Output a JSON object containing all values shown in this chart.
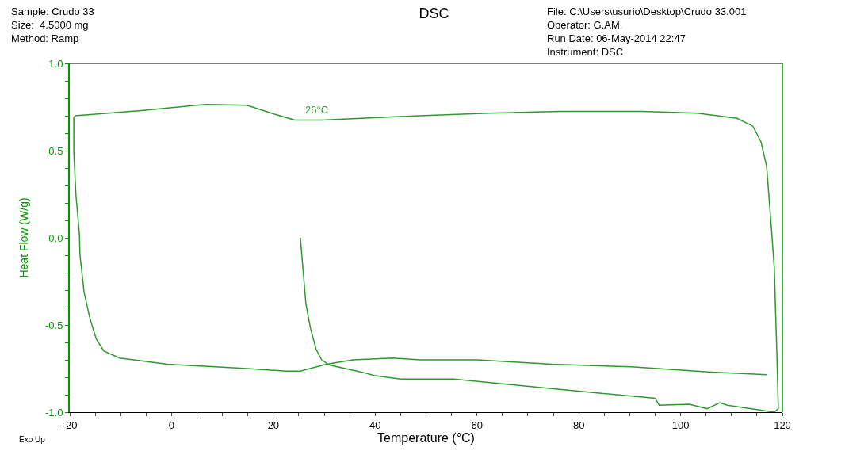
{
  "chart_data": {
    "type": "line",
    "title": "DSC",
    "xlabel": "Temperature (°C)",
    "ylabel": "Heat Flow (W/g)",
    "annotations": [
      {
        "text": "26°C",
        "x": 26,
        "y": 0.675
      },
      "Sample: Crudo 33\nSize:  4.5000 mg\nMethod: Ramp",
      "File: C:\\Users\\usurio\\Desktop\\Crudo 33.001\nOperator: G.AM.\nRun Date: 06-May-2014 22:47\nInstrument: DSC",
      "Exo Up"
    ],
    "series": [
      {
        "color": "#2e9a2e",
        "x": [
          25.3,
          26.4,
          27.3,
          28.4,
          29.5,
          31,
          37.3,
          39.8,
          45,
          48.7,
          55.4,
          69.4,
          79.9,
          95,
          95.8,
          101.7,
          105.2,
          107.7,
          109.2,
          118.4,
          119.2,
          118.9,
          118.4,
          117.8,
          116.9,
          115.8,
          114.2,
          111.1,
          103.3,
          92.4,
          76.3,
          62.3,
          48.7,
          29.6,
          24.2,
          20.1,
          14.8,
          6.8,
          -6,
          -18.9,
          -19.2,
          -19.2,
          -18.8,
          -18.1,
          -18,
          -17.2,
          -16.1,
          -14.8,
          -13.3,
          -10.2,
          -0.8,
          14.8,
          22.6,
          25.3,
          30.4,
          35.7,
          43.5,
          48.7,
          60,
          74.7,
          90.3,
          106,
          117
        ],
        "values": [
          0.0,
          -0.38,
          -0.52,
          -0.64,
          -0.7,
          -0.73,
          -0.77,
          -0.79,
          -0.81,
          -0.81,
          -0.81,
          -0.85,
          -0.88,
          -0.92,
          -0.96,
          -0.955,
          -0.98,
          -0.946,
          -0.96,
          -1.0,
          -0.98,
          -0.65,
          -0.17,
          0.07,
          0.41,
          0.55,
          0.64,
          0.685,
          0.715,
          0.725,
          0.725,
          0.715,
          0.7,
          0.675,
          0.675,
          0.71,
          0.76,
          0.765,
          0.73,
          0.7,
          0.69,
          0.49,
          0.25,
          0.02,
          -0.095,
          -0.31,
          -0.455,
          -0.58,
          -0.65,
          -0.69,
          -0.725,
          -0.75,
          -0.765,
          -0.765,
          -0.725,
          -0.7,
          -0.69,
          -0.7,
          -0.7,
          -0.725,
          -0.74,
          -0.77,
          -0.785
        ]
      }
    ],
    "xlim": [
      -20,
      120
    ],
    "xticks": [
      -20,
      {
        "value": -15,
        "label": null
      },
      {
        "value": -10,
        "label": null
      },
      {
        "value": -5,
        "label": null
      },
      0,
      {
        "value": 5,
        "label": null
      },
      {
        "value": 10,
        "label": null
      },
      {
        "value": 15,
        "label": null
      },
      20,
      {
        "value": 25,
        "label": null
      },
      {
        "value": 30,
        "label": null
      },
      {
        "value": 35,
        "label": null
      },
      40,
      {
        "value": 45,
        "label": null
      },
      {
        "value": 50,
        "label": null
      },
      {
        "value": 55,
        "label": null
      },
      60,
      {
        "value": 65,
        "label": null
      },
      {
        "value": 70,
        "label": null
      },
      {
        "value": 75,
        "label": null
      },
      80,
      {
        "value": 85,
        "label": null
      },
      {
        "value": 90,
        "label": null
      },
      {
        "value": 95,
        "label": null
      },
      100,
      {
        "value": 105,
        "label": null
      },
      {
        "value": 110,
        "label": null
      },
      {
        "value": 115,
        "label": null
      },
      120
    ],
    "ylim": [
      -1.0,
      1.0
    ],
    "yticks": [
      {
        "value": -1.0,
        "label": "-1.0"
      },
      {
        "value": -0.9,
        "label": null
      },
      {
        "value": -0.8,
        "label": null
      },
      {
        "value": -0.7,
        "label": null
      },
      {
        "value": -0.6,
        "label": null
      },
      -0.5,
      {
        "value": -0.4,
        "label": null
      },
      {
        "value": -0.3,
        "label": null
      },
      {
        "value": -0.2,
        "label": null
      },
      {
        "value": -0.1,
        "label": null
      },
      {
        "value": 0.0,
        "label": "0.0"
      },
      {
        "value": 0.1,
        "label": null
      },
      {
        "value": 0.2,
        "label": null
      },
      {
        "value": 0.3,
        "label": null
      },
      {
        "value": 0.4,
        "label": null
      },
      0.5,
      {
        "value": 0.6,
        "label": null
      },
      {
        "value": 0.7,
        "label": null
      },
      {
        "value": 0.8,
        "label": null
      },
      {
        "value": 0.9,
        "label": null
      },
      {
        "value": 1.0,
        "label": "1.0"
      }
    ],
    "marker": "none",
    "line_style": "solid"
  }
}
